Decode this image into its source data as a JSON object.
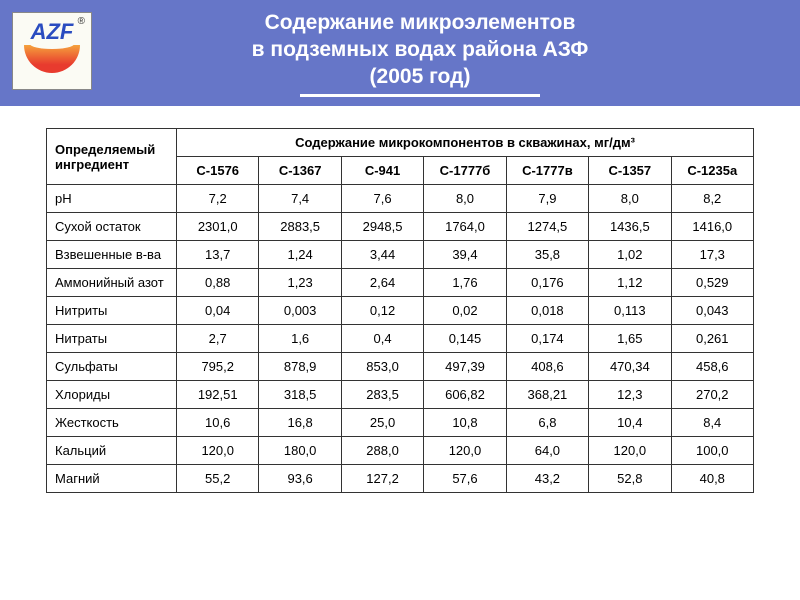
{
  "header": {
    "logo_text": "AZF",
    "title_line1": "Содержание микроэлементов",
    "title_line2": "в подземных водах района АЗФ",
    "title_line3": "(2005 год)"
  },
  "table": {
    "ingredient_header": "Определяемый ингредиент",
    "wells_header": "Содержание микрокомпонентов в скважинах, мг/дм³",
    "columns": [
      "С-1576",
      "С-1367",
      "С-941",
      "С-1777б",
      "С-1777в",
      "С-1357",
      "С-1235а"
    ],
    "rows": [
      {
        "name": "pH",
        "values": [
          "7,2",
          "7,4",
          "7,6",
          "8,0",
          "7,9",
          "8,0",
          "8,2"
        ]
      },
      {
        "name": "Сухой остаток",
        "values": [
          "2301,0",
          "2883,5",
          "2948,5",
          "1764,0",
          "1274,5",
          "1436,5",
          "1416,0"
        ]
      },
      {
        "name": "Взвешенные в-ва",
        "values": [
          "13,7",
          "1,24",
          "3,44",
          "39,4",
          "35,8",
          "1,02",
          "17,3"
        ]
      },
      {
        "name": "Аммонийный азот",
        "values": [
          "0,88",
          "1,23",
          "2,64",
          "1,76",
          "0,176",
          "1,12",
          "0,529"
        ]
      },
      {
        "name": "Нитриты",
        "values": [
          "0,04",
          "0,003",
          "0,12",
          "0,02",
          "0,018",
          "0,113",
          "0,043"
        ]
      },
      {
        "name": "Нитраты",
        "values": [
          "2,7",
          "1,6",
          "0,4",
          "0,145",
          "0,174",
          "1,65",
          "0,261"
        ]
      },
      {
        "name": "Сульфаты",
        "values": [
          "795,2",
          "878,9",
          "853,0",
          "497,39",
          "408,6",
          "470,34",
          "458,6"
        ]
      },
      {
        "name": "Хлориды",
        "values": [
          "192,51",
          "318,5",
          "283,5",
          "606,82",
          "368,21",
          "12,3",
          "270,2"
        ]
      },
      {
        "name": "Жесткость",
        "values": [
          "10,6",
          "16,8",
          "25,0",
          "10,8",
          "6,8",
          "10,4",
          "8,4"
        ]
      },
      {
        "name": "Кальций",
        "values": [
          "120,0",
          "180,0",
          "288,0",
          "120,0",
          "64,0",
          "120,0",
          "100,0"
        ]
      },
      {
        "name": "Магний",
        "values": [
          "55,2",
          "93,6",
          "127,2",
          "57,6",
          "43,2",
          "52,8",
          "40,8"
        ]
      }
    ]
  },
  "colors": {
    "header_bg": "#6676c8",
    "header_text": "#ffffff",
    "border": "#333333",
    "page_bg": "#ffffff"
  }
}
